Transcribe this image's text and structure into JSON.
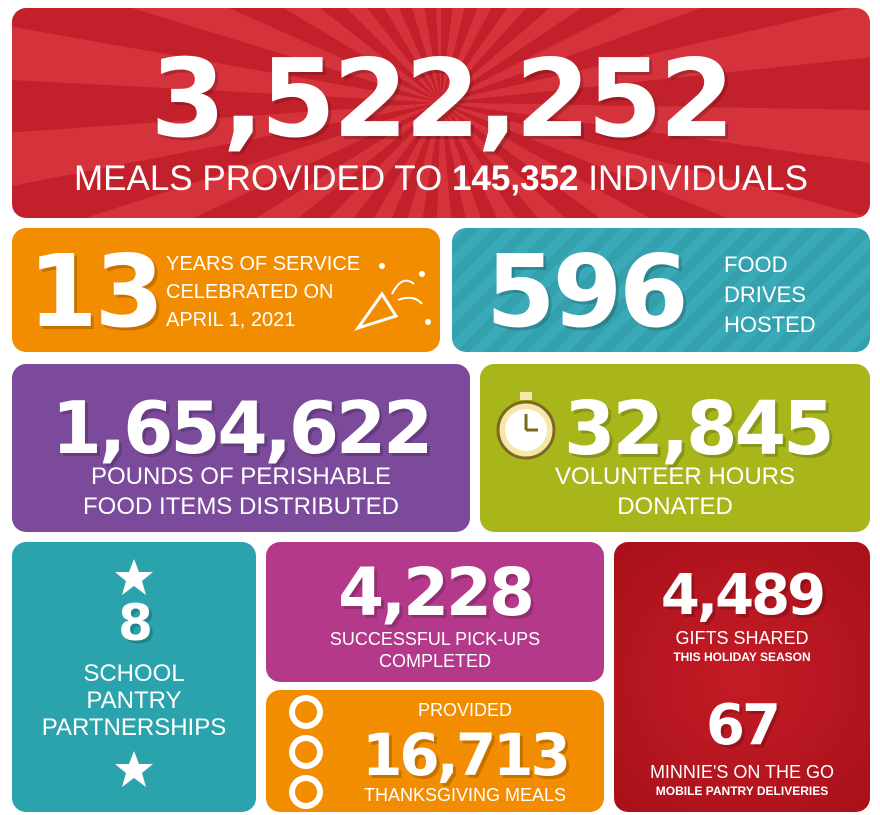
{
  "meals": {
    "number": "3,522,252",
    "text_before": "MEALS PROVIDED TO",
    "highlight": "145,352",
    "text_after": "INDIVIDUALS"
  },
  "years": {
    "number": "13",
    "lines": [
      "YEARS OF SERVICE",
      "CELEBRATED ON",
      "APRIL 1, 2021"
    ]
  },
  "drives": {
    "number": "596",
    "lines": [
      "FOOD",
      "DRIVES",
      "HOSTED"
    ]
  },
  "pounds": {
    "number": "1,654,622",
    "lines": [
      "POUNDS OF PERISHABLE",
      "FOOD ITEMS DISTRIBUTED"
    ]
  },
  "volunteer": {
    "number": "32,845",
    "lines": [
      "VOLUNTEER HOURS",
      "DONATED"
    ]
  },
  "school": {
    "number": "8",
    "lines": [
      "SCHOOL",
      "PANTRY",
      "PARTNERSHIPS"
    ]
  },
  "pickups": {
    "number": "4,228",
    "lines": [
      "SUCCESSFUL PICK-UPS",
      "COMPLETED"
    ]
  },
  "thanksgiving": {
    "label": "PROVIDED",
    "number": "16,713",
    "caption": "THANKSGIVING MEALS"
  },
  "gifts": {
    "number": "4,489",
    "caption": "GIFTS SHARED",
    "subcaption": "THIS HOLIDAY SEASON"
  },
  "minnies": {
    "number": "67",
    "caption": "MINNIE'S ON THE GO",
    "subcaption": "MOBILE PANTRY DELIVERIES"
  }
}
